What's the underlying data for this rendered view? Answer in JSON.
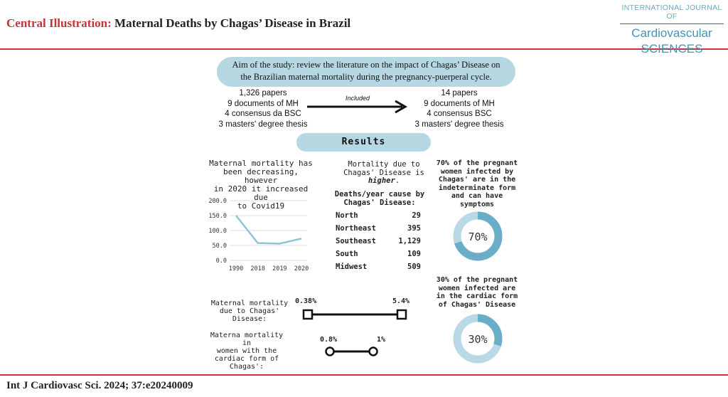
{
  "header": {
    "label": "Central Illustration:",
    "title": "Maternal Deaths by Chagas’ Disease in Brazil",
    "journal_top": "INTERNATIONAL JOURNAL OF",
    "journal_line1": "Cardiovascular",
    "journal_line2": "SCIENCES"
  },
  "aim": {
    "line1": "Aim of the study: review the literature on the impact of Chagas’ Disease on",
    "line2": "the Brazilian maternal mortality during the pregnancy-puerperal cycle."
  },
  "papers_left": [
    "1,326 papers",
    "9 documents of MH",
    "4 consensus da BSC",
    "3 masters' degree thesis"
  ],
  "papers_right": [
    "14 papers",
    "9 documents of MH",
    "4 consensus BSC",
    "3 masters' degree thesis"
  ],
  "included_label": "Included",
  "results_label": "Results",
  "mortality_text": [
    "Maternal mortality has",
    "been decreasing, however",
    "in 2020 it increased due",
    "to Covid19"
  ],
  "chagas_text": {
    "line1": "Mortality due to",
    "line2": "Chagas' Disease is",
    "emph": "higher"
  },
  "deaths_title": [
    "Deaths/year cause by",
    "Chagas' Disease:"
  ],
  "regions": [
    {
      "name": "North",
      "value": "29"
    },
    {
      "name": "Northeast",
      "value": "395"
    },
    {
      "name": "Southeast",
      "value": "1,129"
    },
    {
      "name": "South",
      "value": "109"
    },
    {
      "name": "Midwest",
      "value": "509"
    }
  ],
  "pct70_text": [
    "70% of the pregnant",
    "women infected by",
    "Chagas' are in the",
    "indeterminate form",
    "and can have",
    "symptoms"
  ],
  "pct30_text": [
    "30% of the pregnant",
    "women infected are",
    "in the cardiac form",
    "of Chagas' Disease"
  ],
  "mm_chagas_text": [
    "Maternal mortality",
    "due to Chagas'",
    "Disease:"
  ],
  "mm_cardiac_text": [
    "Materna mortality in",
    "women with the",
    "cardiac form of",
    "Chagas':"
  ],
  "range1": {
    "low": "0.38%",
    "high": "5.4%"
  },
  "range2": {
    "low": "0.8%",
    "high": "1%"
  },
  "donut1": {
    "label": "70%",
    "value": 0.7,
    "fill": "#6aadc9",
    "track": "#b9d9e6"
  },
  "donut2": {
    "label": "30%",
    "value": 0.3,
    "fill": "#6aadc9",
    "track": "#b9d9e6"
  },
  "footer": "Int J Cardiovasc Sci. 2024; 37:e20240009",
  "chart_data": {
    "type": "line",
    "categories": [
      "1990",
      "2018",
      "2019",
      "2020"
    ],
    "values": [
      150.0,
      58.0,
      56.0,
      73.0
    ],
    "yticks": [
      "200.0",
      "150.0",
      "100.0",
      "50.0",
      "0.0"
    ],
    "ylim": [
      0,
      200
    ],
    "color": "#8ec4d6",
    "grid": true
  }
}
